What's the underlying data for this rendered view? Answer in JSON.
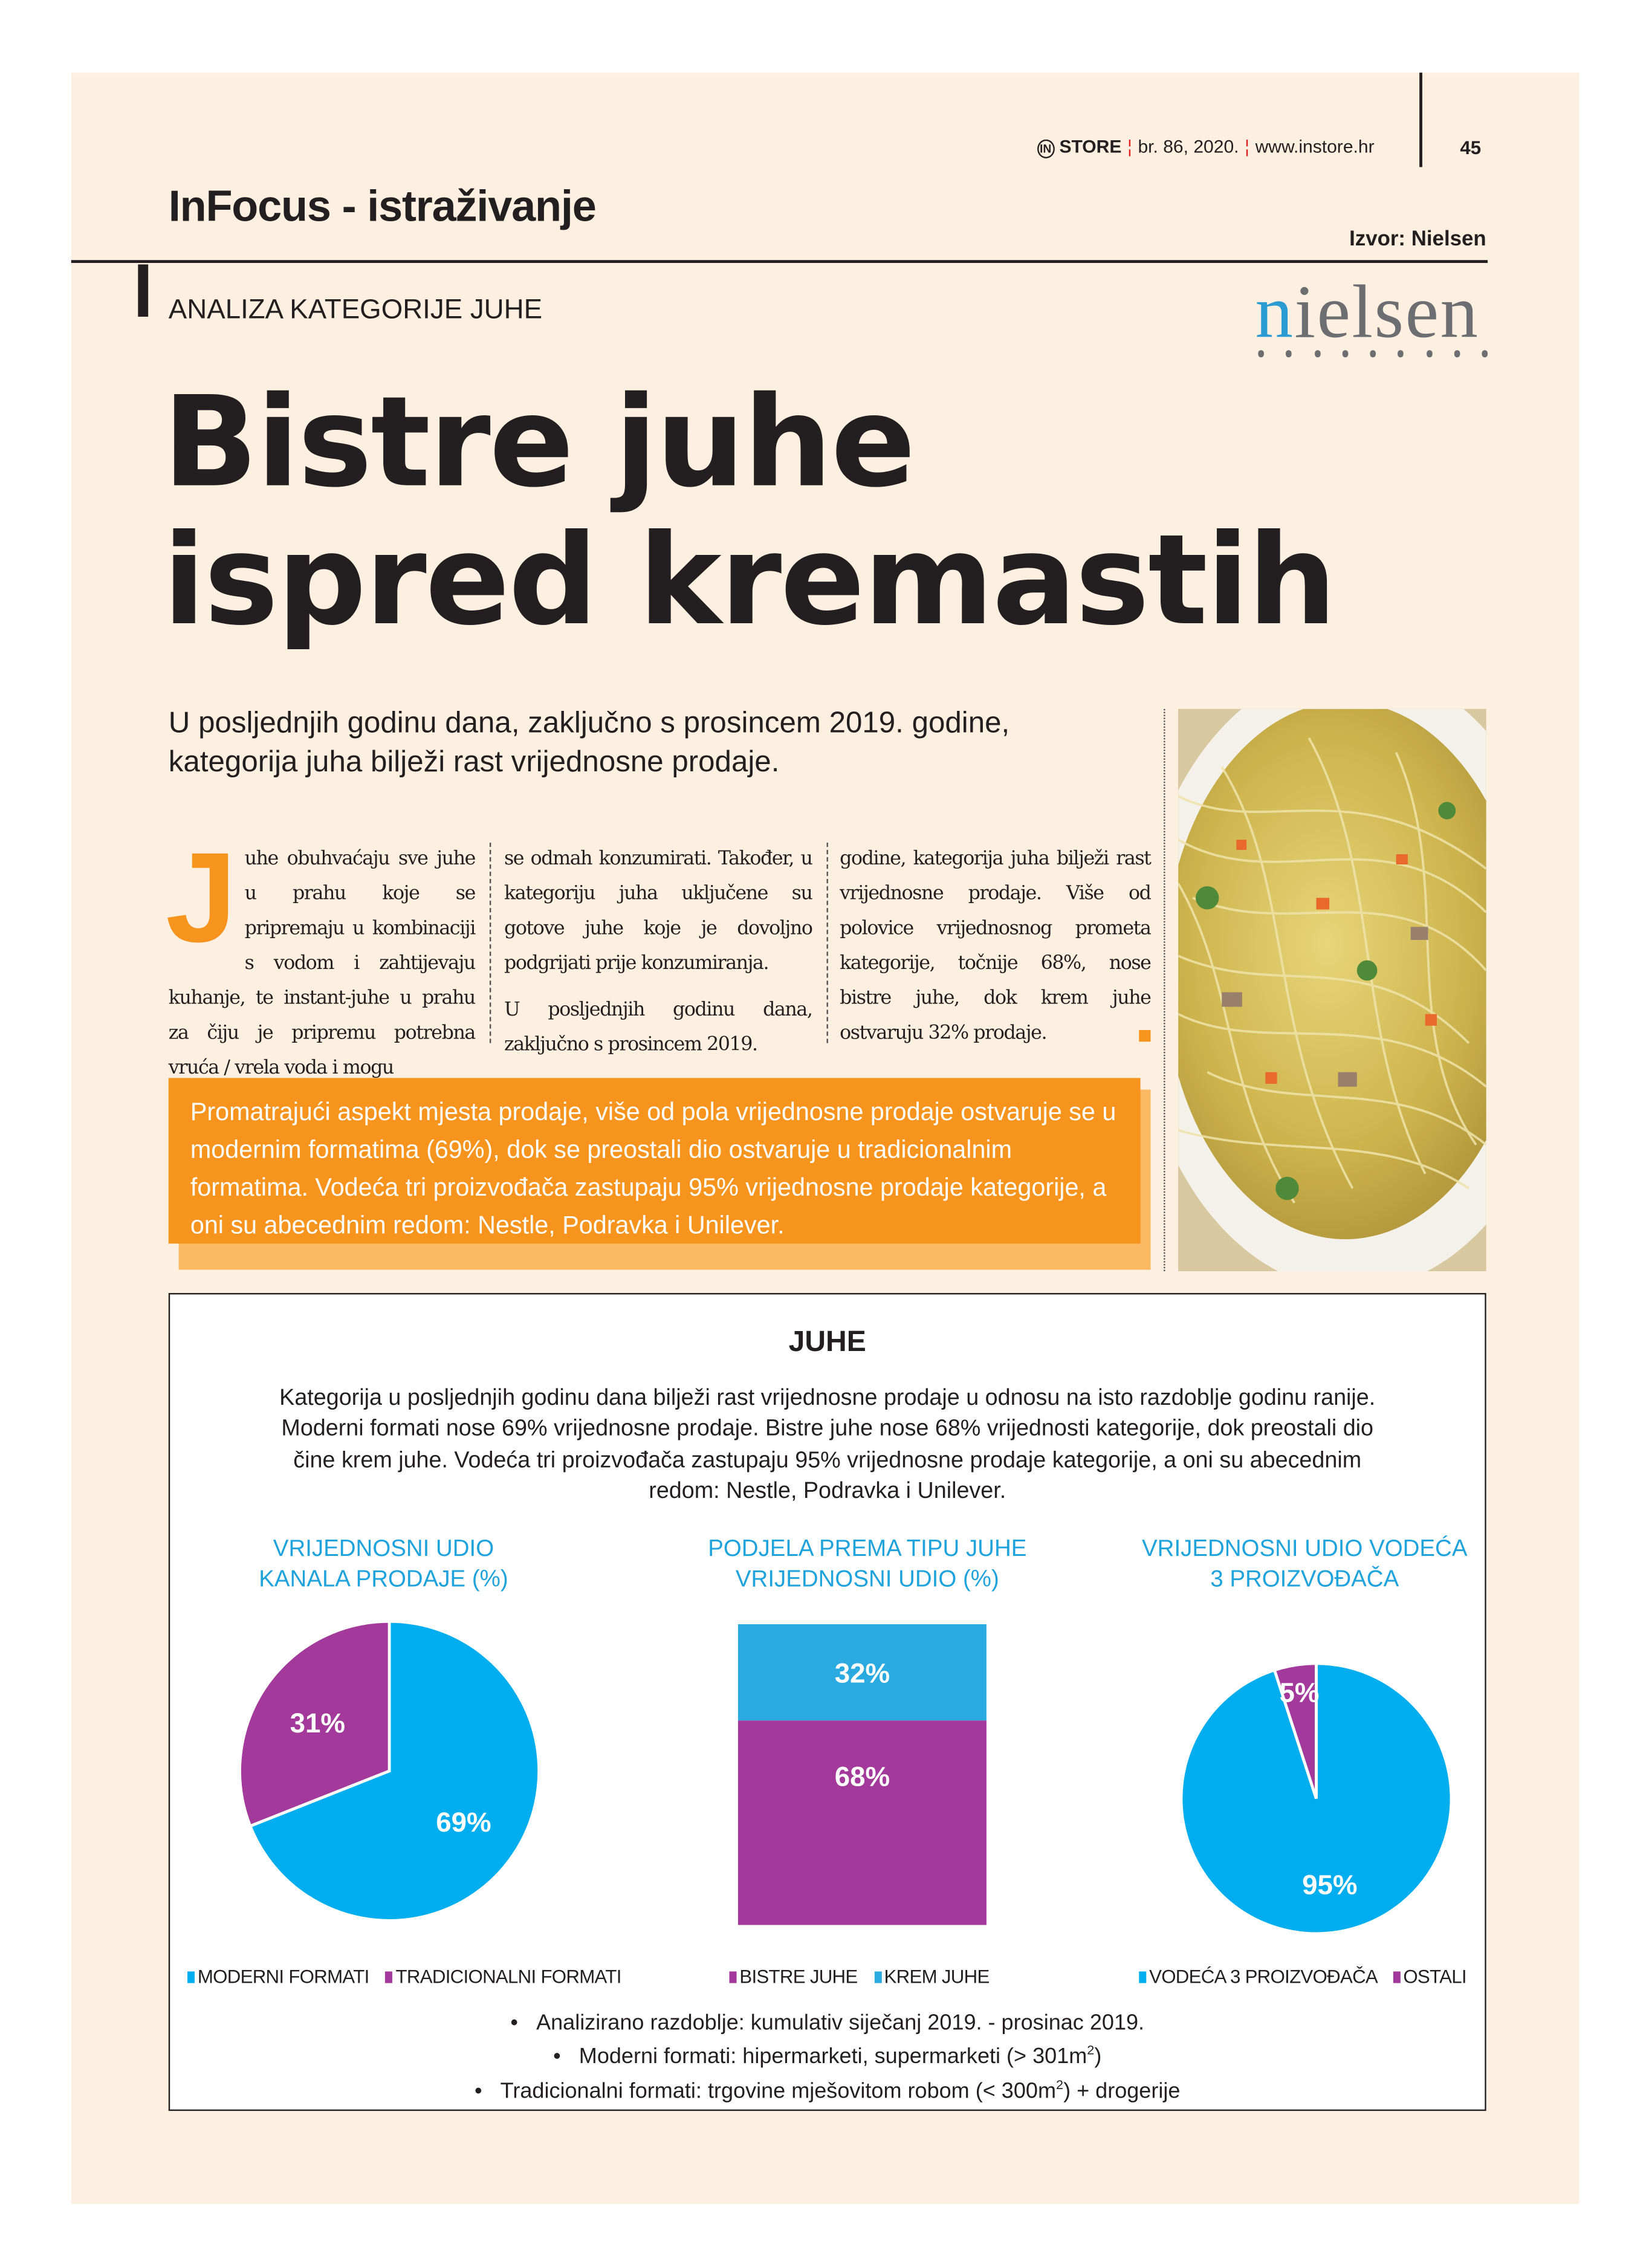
{
  "header": {
    "brand_logo": "IN",
    "brand": "STORE",
    "issue": "br. 86, 2020.",
    "url": "www.instore.hr",
    "page_number": "45"
  },
  "section": "InFocus - istraživanje",
  "source": "Izvor: Nielsen",
  "logo_text": "nielsen",
  "kicker": "ANALIZA KATEGORIJE JUHE",
  "headline": [
    "Bistre juhe",
    "ispred kremastih"
  ],
  "lead": "U posljednjih godinu dana, zaključno s prosincem 2019. godine, kategorija juha bilježi rast vrijednosne prodaje.",
  "body": {
    "dropcap": "J",
    "col1": "uhe obuhvaćaju sve juhe u prahu koje se pripremaju u kombinaciji s vodom i zahtijevaju kuhanje, te instant-juhe u prahu za čiju je pripremu potrebna vruća / vrela voda i mogu",
    "col2a": "se odmah konzumirati. Također, u kategoriju juha uključene su gotove juhe koje je dovoljno podgrijati prije konzumiranja.",
    "col2b": "U posljednjih godinu dana, zaključno s prosincem 2019.",
    "col3": "godine, kategorija juha bilježi rast vrijednosne prodaje. Više od polovice vrijednosnog prometa kategorije, točnije 68%, nose bistre juhe, dok krem juhe ostvaruju 32% prodaje."
  },
  "highlight": "Promatrajući aspekt mjesta prodaje, više od pola vrijednosne prodaje ostvaruje se u modernim formatima (69%), dok se preostali dio ostvaruje u tradicionalnim formatima. Vodeća tri proizvođača zastupaju 95% vrijednosne prodaje kategorije, a oni su abecednim redom:  Nestle, Podravka i Unilever.",
  "infographic": {
    "title": "JUHE",
    "description": "Kategorija u posljednjih godinu dana bilježi rast vrijednosne prodaje u odnosu na isto razdoblje godinu ranije. Moderni formati nose 69% vrijednosne prodaje. Bistre juhe nose 68% vrijednosti kategorije, dok preostali dio čine krem juhe. Vodeća tri proizvođača zastupaju 95% vrijednosne prodaje kategorije, a oni su abecednim redom: Nestle, Podravka i Unilever.",
    "notes": [
      "Analizirano razdoblje: kumulativ siječanj 2019. - prosinac 2019.",
      "Moderni formati: hipermarketi, supermarketi (> 301m",
      "Tradicionalni formati: trgovine mješovitom robom (< 300m"
    ],
    "notes_tail": [
      ") + drogerije",
      ")"
    ],
    "sup": "2"
  },
  "chart_data": [
    {
      "type": "pie",
      "title": "VRIJEDNOSNI UDIO KANALA PRODAJE (%)",
      "title_lines": [
        "VRIJEDNOSNI UDIO",
        "KANALA PRODAJE (%)"
      ],
      "slices": [
        {
          "name": "MODERNI FORMATI",
          "value": 69,
          "label": "69%",
          "color": "#00aeef"
        },
        {
          "name": "TRADICIONALNI FORMATI",
          "value": 31,
          "label": "31%",
          "color": "#a3399b"
        }
      ],
      "legend": "bottom"
    },
    {
      "type": "bar",
      "stacked": true,
      "title": "PODJELA PREMA TIPU JUHE VRIJEDNOSNI UDIO (%)",
      "title_lines": [
        "PODJELA PREMA TIPU JUHE",
        "VRIJEDNOSNI UDIO (%)"
      ],
      "series": [
        {
          "name": "BISTRE JUHE",
          "value": 68,
          "label": "68%",
          "color": "#a3399b"
        },
        {
          "name": "KREM JUHE",
          "value": 32,
          "label": "32%",
          "color": "#29abe2"
        }
      ],
      "legend": "bottom"
    },
    {
      "type": "pie",
      "title": "VRIJEDNOSNI UDIO VODEĆA 3 PROIZVOĐAČA",
      "title_lines": [
        "VRIJEDNOSNI UDIO VODEĆA",
        "3 PROIZVOĐAČA"
      ],
      "slices": [
        {
          "name": "VODEĆA 3 PROIZVOĐAČA",
          "value": 95,
          "label": "95%",
          "color": "#00aeef"
        },
        {
          "name": "OSTALI",
          "value": 5,
          "label": "5%",
          "color": "#a3399b"
        }
      ],
      "legend": "bottom"
    }
  ]
}
